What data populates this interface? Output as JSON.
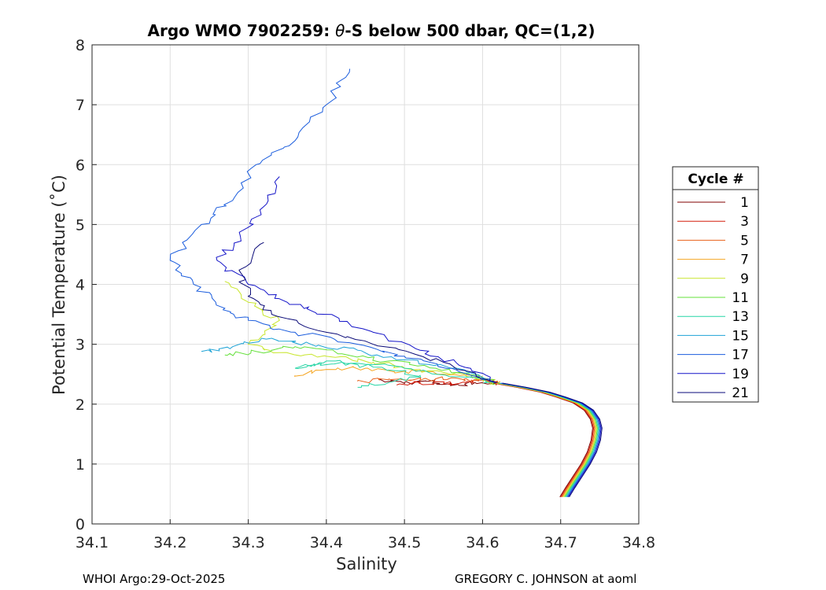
{
  "chart_data": {
    "type": "line",
    "title_prefix": "Argo WMO 7902259: ",
    "title_symbol": "θ",
    "title_suffix": "-S below 500 dbar,  QC=(1,2)",
    "xlabel": "Salinity",
    "ylabel": "Potential Temperature (˚C)",
    "xlim": [
      34.1,
      34.8
    ],
    "ylim": [
      0,
      8
    ],
    "xticks": [
      "34.1",
      "34.2",
      "34.3",
      "34.4",
      "34.5",
      "34.6",
      "34.7",
      "34.8"
    ],
    "yticks": [
      "0",
      "1",
      "2",
      "3",
      "4",
      "5",
      "6",
      "7",
      "8"
    ],
    "grid": true,
    "legend_title": "Cycle #",
    "legend_placement": "outside-right",
    "deep_branch": [
      [
        34.705,
        0.45
      ],
      [
        34.712,
        0.6
      ],
      [
        34.722,
        0.8
      ],
      [
        34.732,
        1.0
      ],
      [
        34.74,
        1.2
      ],
      [
        34.745,
        1.4
      ],
      [
        34.747,
        1.6
      ],
      [
        34.744,
        1.75
      ],
      [
        34.736,
        1.9
      ],
      [
        34.722,
        2.02
      ],
      [
        34.7,
        2.12
      ],
      [
        34.68,
        2.2
      ],
      [
        34.65,
        2.28
      ],
      [
        34.62,
        2.35
      ]
    ],
    "series": [
      {
        "cycle": 1,
        "label": "1",
        "color": "#800000",
        "points": [
          [
            34.47,
            2.4
          ],
          [
            34.5,
            2.36
          ],
          [
            34.53,
            2.38
          ],
          [
            34.56,
            2.32
          ],
          [
            34.59,
            2.36
          ],
          [
            34.62,
            2.35
          ]
        ]
      },
      {
        "cycle": 3,
        "label": "3",
        "color": "#d41e0c",
        "points": [
          [
            34.49,
            2.32
          ],
          [
            34.52,
            2.36
          ],
          [
            34.55,
            2.34
          ],
          [
            34.58,
            2.38
          ],
          [
            34.61,
            2.37
          ],
          [
            34.62,
            2.35
          ]
        ]
      },
      {
        "cycle": 5,
        "label": "5",
        "color": "#e8601a",
        "points": [
          [
            34.44,
            2.38
          ],
          [
            34.48,
            2.42
          ],
          [
            34.52,
            2.4
          ],
          [
            34.56,
            2.44
          ],
          [
            34.59,
            2.4
          ],
          [
            34.62,
            2.35
          ]
        ]
      },
      {
        "cycle": 7,
        "label": "7",
        "color": "#f5a623",
        "points": [
          [
            34.36,
            2.48
          ],
          [
            34.4,
            2.58
          ],
          [
            34.45,
            2.6
          ],
          [
            34.5,
            2.55
          ],
          [
            34.55,
            2.5
          ],
          [
            34.6,
            2.42
          ],
          [
            34.62,
            2.35
          ]
        ]
      },
      {
        "cycle": 9,
        "label": "9",
        "color": "#c8e62d",
        "points": [
          [
            34.27,
            4.05
          ],
          [
            34.3,
            3.7
          ],
          [
            34.34,
            3.4
          ],
          [
            34.3,
            3.0
          ],
          [
            34.34,
            2.86
          ],
          [
            34.4,
            2.8
          ],
          [
            34.46,
            2.7
          ],
          [
            34.52,
            2.58
          ],
          [
            34.58,
            2.46
          ],
          [
            34.62,
            2.35
          ]
        ]
      },
      {
        "cycle": 11,
        "label": "11",
        "color": "#63e039",
        "points": [
          [
            34.27,
            2.82
          ],
          [
            34.31,
            2.88
          ],
          [
            34.36,
            2.96
          ],
          [
            34.42,
            2.84
          ],
          [
            34.48,
            2.72
          ],
          [
            34.54,
            2.6
          ],
          [
            34.6,
            2.45
          ],
          [
            34.62,
            2.35
          ]
        ]
      },
      {
        "cycle": 13,
        "label": "13",
        "color": "#27d5a5",
        "points": [
          [
            34.44,
            2.28
          ],
          [
            34.48,
            2.36
          ],
          [
            34.52,
            2.48
          ],
          [
            34.46,
            2.62
          ],
          [
            34.4,
            2.72
          ],
          [
            34.36,
            2.6
          ],
          [
            34.42,
            2.7
          ],
          [
            34.5,
            2.6
          ],
          [
            34.58,
            2.45
          ],
          [
            34.62,
            2.35
          ]
        ]
      },
      {
        "cycle": 15,
        "label": "15",
        "color": "#1ea3d6",
        "points": [
          [
            34.24,
            2.88
          ],
          [
            34.28,
            2.96
          ],
          [
            34.33,
            3.1
          ],
          [
            34.38,
            3.0
          ],
          [
            34.44,
            2.9
          ],
          [
            34.5,
            2.74
          ],
          [
            34.56,
            2.6
          ],
          [
            34.62,
            2.35
          ]
        ]
      },
      {
        "cycle": 17,
        "label": "17",
        "color": "#1a5cdd",
        "points": [
          [
            34.43,
            7.6
          ],
          [
            34.4,
            7.0
          ],
          [
            34.36,
            6.4
          ],
          [
            34.31,
            6.0
          ],
          [
            34.28,
            5.4
          ],
          [
            34.24,
            5.0
          ],
          [
            34.2,
            4.4
          ],
          [
            34.23,
            4.0
          ],
          [
            34.27,
            3.6
          ],
          [
            34.3,
            3.4
          ],
          [
            34.36,
            3.2
          ],
          [
            34.44,
            3.0
          ],
          [
            34.5,
            2.8
          ],
          [
            34.56,
            2.6
          ],
          [
            34.62,
            2.35
          ]
        ]
      },
      {
        "cycle": 19,
        "label": "19",
        "color": "#1414c8",
        "points": [
          [
            34.34,
            5.8
          ],
          [
            34.32,
            5.3
          ],
          [
            34.29,
            4.8
          ],
          [
            34.26,
            4.4
          ],
          [
            34.3,
            4.0
          ],
          [
            34.35,
            3.7
          ],
          [
            34.4,
            3.5
          ],
          [
            34.46,
            3.2
          ],
          [
            34.52,
            2.9
          ],
          [
            34.57,
            2.65
          ],
          [
            34.62,
            2.35
          ]
        ]
      },
      {
        "cycle": 21,
        "label": "21",
        "color": "#0a0a78",
        "points": [
          [
            34.32,
            4.7
          ],
          [
            34.29,
            4.2
          ],
          [
            34.3,
            3.8
          ],
          [
            34.33,
            3.5
          ],
          [
            34.4,
            3.2
          ],
          [
            34.48,
            2.95
          ],
          [
            34.55,
            2.7
          ],
          [
            34.62,
            2.35
          ]
        ]
      }
    ]
  },
  "footer": {
    "left": "WHOI Argo:29-Oct-2025",
    "right": "GREGORY C. JOHNSON at aoml"
  }
}
